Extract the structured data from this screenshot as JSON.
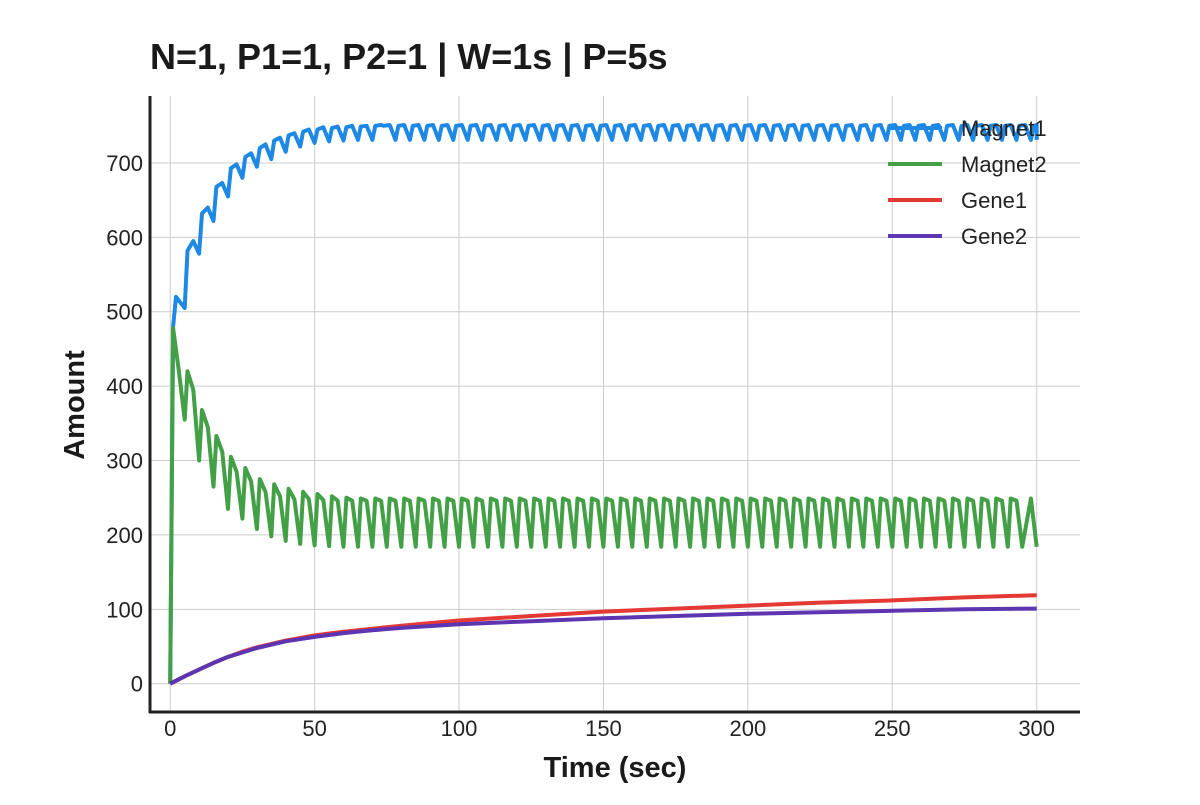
{
  "chart_data": {
    "type": "line",
    "title": "N=1, P1=1, P2=1 | W=1s | P=5s",
    "xlabel": "Time (sec)",
    "ylabel": "Amount",
    "xlim": [
      -7,
      315
    ],
    "ylim": [
      -38,
      790
    ],
    "x_ticks": [
      0,
      50,
      100,
      150,
      200,
      250,
      300
    ],
    "y_ticks": [
      0,
      100,
      200,
      300,
      400,
      500,
      600,
      700
    ],
    "grid": true,
    "legend_position": "top-right",
    "series": [
      {
        "name": "Magnet1",
        "color": "#1e88e5",
        "model": "periodic",
        "period": 5,
        "x": [
          0,
          1,
          2,
          3,
          5,
          6,
          8,
          10,
          11,
          13,
          15,
          16,
          18,
          20,
          21,
          23,
          25,
          26,
          28,
          30,
          31,
          33,
          35,
          36,
          38,
          40,
          41,
          43,
          45,
          46,
          48,
          50,
          51,
          53,
          55,
          56,
          58,
          60,
          61,
          63,
          65,
          66,
          68,
          70,
          71,
          73
        ],
        "y": [
          0,
          480,
          520,
          515,
          505,
          582,
          595,
          578,
          632,
          640,
          622,
          668,
          673,
          655,
          693,
          698,
          680,
          708,
          713,
          695,
          720,
          725,
          705,
          730,
          734,
          715,
          737,
          740,
          722,
          742,
          745,
          727,
          745,
          748,
          729,
          747,
          749,
          730,
          748,
          750,
          731,
          749,
          750,
          731,
          750,
          751
        ],
        "steady_high": 751,
        "steady_low": 731
      },
      {
        "name": "Magnet2",
        "color": "#43a047",
        "model": "periodic",
        "period": 5,
        "x": [
          0,
          1,
          3,
          5,
          6,
          8,
          10,
          11,
          13,
          15,
          16,
          18,
          20,
          21,
          23,
          25,
          26,
          28,
          30,
          31,
          33,
          35,
          36,
          38,
          40,
          41,
          43,
          45,
          46,
          48,
          50,
          51,
          53,
          55,
          56,
          58,
          60,
          61,
          63,
          65,
          66,
          68,
          70
        ],
        "y": [
          0,
          478,
          420,
          355,
          420,
          395,
          300,
          368,
          345,
          265,
          333,
          312,
          235,
          305,
          285,
          222,
          290,
          272,
          208,
          275,
          258,
          198,
          268,
          252,
          192,
          262,
          248,
          188,
          258,
          248,
          186,
          255,
          247,
          185,
          252,
          246,
          184,
          250,
          246,
          184,
          249,
          246,
          184
        ],
        "steady_high": 249,
        "steady_mid": 246,
        "steady_low": 184
      },
      {
        "name": "Gene1",
        "color": "#e53935",
        "model": "smooth",
        "x": [
          0,
          5,
          10,
          15,
          20,
          25,
          30,
          40,
          50,
          60,
          70,
          80,
          100,
          125,
          150,
          175,
          200,
          225,
          250,
          275,
          300
        ],
        "y": [
          0,
          10,
          19,
          28,
          36,
          43,
          49,
          58,
          65,
          70,
          74,
          78,
          85,
          91,
          97,
          101,
          105,
          109,
          112,
          116,
          119
        ]
      },
      {
        "name": "Gene2",
        "color": "#5e35b1",
        "model": "smooth",
        "x": [
          0,
          5,
          10,
          15,
          20,
          25,
          30,
          40,
          50,
          60,
          70,
          80,
          100,
          125,
          150,
          175,
          200,
          225,
          250,
          275,
          300
        ],
        "y": [
          0,
          10,
          19,
          28,
          36,
          42,
          48,
          57,
          63,
          68,
          72,
          75,
          80,
          84,
          88,
          91,
          94,
          96,
          98,
          100,
          101
        ]
      }
    ]
  }
}
